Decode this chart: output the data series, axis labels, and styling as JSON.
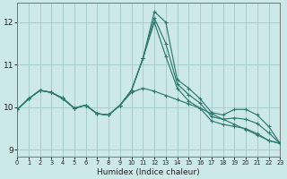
{
  "xlabel": "Humidex (Indice chaleur)",
  "background_color": "#cde8e8",
  "grid_color": "#a8cccc",
  "line_color": "#2d7a6e",
  "xlim": [
    0,
    23
  ],
  "ylim": [
    8.85,
    12.45
  ],
  "yticks": [
    9,
    10,
    11,
    12
  ],
  "xtick_labels": [
    "0",
    "1",
    "2",
    "3",
    "4",
    "5",
    "6",
    "7",
    "8",
    "9",
    "10",
    "11",
    "12",
    "13",
    "14",
    "15",
    "16",
    "17",
    "18",
    "19",
    "20",
    "21",
    "22",
    "23"
  ],
  "series": [
    [
      9.95,
      10.2,
      10.4,
      10.35,
      10.2,
      9.98,
      10.05,
      9.85,
      9.82,
      10.05,
      10.4,
      11.15,
      12.25,
      12.0,
      10.65,
      10.45,
      10.2,
      9.88,
      9.82,
      9.95,
      9.95,
      9.82,
      9.55,
      9.15
    ],
    [
      9.95,
      10.2,
      10.4,
      10.35,
      10.2,
      9.98,
      10.05,
      9.85,
      9.82,
      10.05,
      10.4,
      11.15,
      12.1,
      11.5,
      10.55,
      10.3,
      10.1,
      9.78,
      9.72,
      9.75,
      9.72,
      9.62,
      9.4,
      9.15
    ],
    [
      9.95,
      10.2,
      10.4,
      10.35,
      10.2,
      9.98,
      10.05,
      9.85,
      9.82,
      10.05,
      10.4,
      11.15,
      12.0,
      11.2,
      10.45,
      10.15,
      9.98,
      9.68,
      9.6,
      9.55,
      9.5,
      9.38,
      9.22,
      9.15
    ],
    [
      9.95,
      10.2,
      10.4,
      10.35,
      10.22,
      9.98,
      10.05,
      9.85,
      9.82,
      10.05,
      10.35,
      10.45,
      10.38,
      10.28,
      10.18,
      10.08,
      9.98,
      9.85,
      9.72,
      9.6,
      9.48,
      9.35,
      9.22,
      9.15
    ]
  ]
}
